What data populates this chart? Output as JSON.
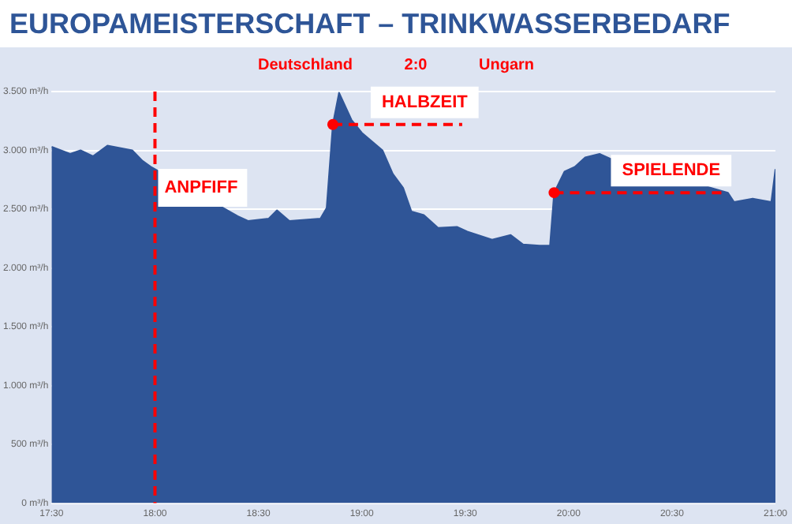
{
  "chart_data": {
    "type": "area",
    "title": "EUROPAMEISTERSCHAFT – TRINKWASSERBEDARF",
    "subtitle": "Deutschland 2:0 Ungarn",
    "x": [
      17.5,
      17.59,
      17.64,
      17.7,
      17.77,
      17.89,
      17.94,
      17.98,
      18.4,
      18.45,
      18.55,
      18.59,
      18.65,
      18.8,
      18.83,
      18.86,
      18.89,
      18.95,
      19.0,
      19.1,
      19.15,
      19.2,
      19.24,
      19.3,
      19.37,
      19.46,
      19.51,
      19.63,
      19.72,
      19.78,
      19.86,
      19.91,
      19.93,
      19.98,
      20.03,
      20.08,
      20.15,
      20.2,
      20.71,
      20.77,
      20.8,
      20.89,
      20.98,
      21.0
    ],
    "series": [
      {
        "color": "#2f5597",
        "values": [
          3030,
          2970,
          3000,
          2950,
          3040,
          3000,
          2910,
          2860,
          2440,
          2400,
          2420,
          2490,
          2400,
          2420,
          2510,
          3220,
          3490,
          3260,
          3150,
          3000,
          2800,
          2680,
          2480,
          2450,
          2340,
          2350,
          2310,
          2240,
          2280,
          2200,
          2190,
          2190,
          2640,
          2820,
          2860,
          2940,
          2970,
          2930,
          2670,
          2640,
          2560,
          2590,
          2560,
          2840
        ]
      }
    ],
    "xlim": [
      17.5,
      21
    ],
    "xticks": [
      {
        "value": 17.5,
        "label": "17:30"
      },
      {
        "value": 18,
        "label": "18:00"
      },
      {
        "value": 18.5,
        "label": "18:30"
      },
      {
        "value": 19,
        "label": "19:00"
      },
      {
        "value": 19.5,
        "label": "19:30"
      },
      {
        "value": 20,
        "label": "20:00"
      },
      {
        "value": 20.5,
        "label": "20:30"
      },
      {
        "value": 21,
        "label": "21:00"
      }
    ],
    "ylim": [
      0,
      3500
    ],
    "yticks": [
      {
        "value": 0,
        "label": "0 m³/h"
      },
      {
        "value": 500,
        "label": "500 m³/h"
      },
      {
        "value": 1000,
        "label": "1.000 m³/h"
      },
      {
        "value": 1500,
        "label": "1.500 m³/h"
      },
      {
        "value": 2000,
        "label": "2.000 m³/h"
      },
      {
        "value": 2500,
        "label": "2.500 m³/h"
      },
      {
        "value": 3000,
        "label": "3.000 m³/h"
      },
      {
        "value": 3500,
        "label": "3.500 m³/h"
      }
    ],
    "grid": "y",
    "ref_lines": [
      {
        "axis": "x",
        "value": 18,
        "label": "ANPFIFF",
        "color": "#ff0000",
        "line_style": "dashed"
      }
    ],
    "annotations": [
      {
        "text": "HALBZEIT",
        "x": 18.86,
        "y": 3220
      },
      {
        "text": "SPIELENDE",
        "x": 19.93,
        "y": 2640
      }
    ]
  }
}
